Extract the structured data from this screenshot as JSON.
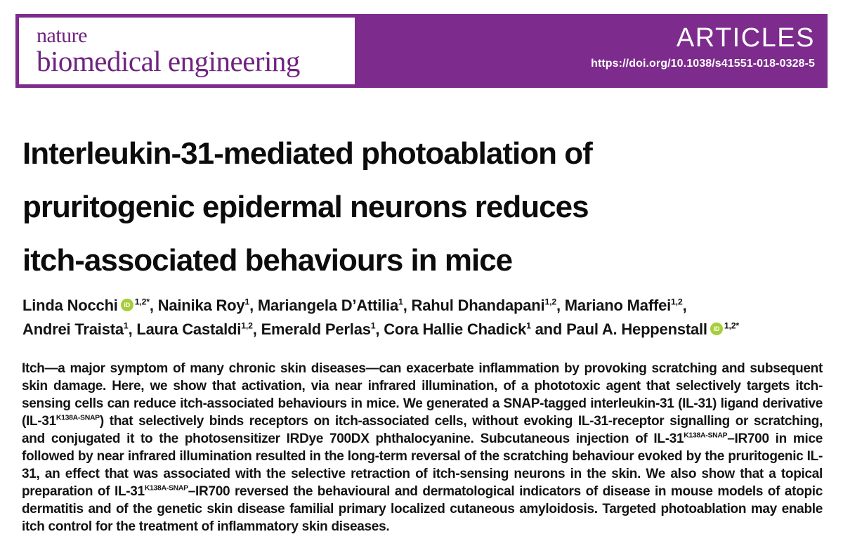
{
  "colors": {
    "purple": "#7d2b8c",
    "logo_purple": "#6f2480",
    "orcid_green": "#a6ce39"
  },
  "masthead": {
    "journal_name_line1": "nature",
    "journal_name_line2": "biomedical engineering",
    "article_type": "ARTICLES",
    "doi": "https://doi.org/10.1038/s41551-018-0328-5"
  },
  "article": {
    "title_lines": [
      "Interleukin-31-mediated photoablation of",
      "pruritogenic epidermal neurons reduces",
      "itch-associated behaviours in mice"
    ],
    "author_lines": [
      [
        {
          "t": "Linda Nocchi"
        },
        {
          "icon": "orcid"
        },
        {
          "sup": "1,2*"
        },
        {
          "t": ", Nainika Roy"
        },
        {
          "sup": "1"
        },
        {
          "t": ", Mariangela D’Attilia"
        },
        {
          "sup": "1"
        },
        {
          "t": ", Rahul Dhandapani"
        },
        {
          "sup": "1,2"
        },
        {
          "t": ", Mariano Maffei"
        },
        {
          "sup": "1,2"
        },
        {
          "t": ","
        }
      ],
      [
        {
          "t": "Andrei Traista"
        },
        {
          "sup": "1"
        },
        {
          "t": ", Laura Castaldi"
        },
        {
          "sup": "1,2"
        },
        {
          "t": ", Emerald Perlas"
        },
        {
          "sup": "1"
        },
        {
          "t": ", Cora Hallie Chadick"
        },
        {
          "sup": "1"
        },
        {
          "t": " and Paul A. Heppenstall"
        },
        {
          "icon": "orcid"
        },
        {
          "sup": "1,2*"
        }
      ]
    ],
    "abstract_runs": [
      {
        "t": "Itch—a major symptom of many chronic skin diseases—can exacerbate inflammation by provoking scratching and subsequent skin damage. Here, we show that activation, via near infrared illumination, of a phototoxic agent that selectively targets itch-sensing cells can reduce itch-associated behaviours in mice. We generated a SNAP-tagged interleukin-31 (IL-31) ligand derivative (IL-31"
      },
      {
        "sup": "K138A-SNAP"
      },
      {
        "t": ") that selectively binds receptors on itch-associated cells, without evoking IL-31-receptor signalling or scratching, and conjugated it to the photosensitizer IRDye 700DX phthalocyanine. Subcutaneous injection of IL-31"
      },
      {
        "sup": "K138A-SNAP"
      },
      {
        "t": "–IR700 in mice followed by near infrared illumination resulted in the long-term reversal of the scratching behaviour evoked by the pruritogenic IL-31, an effect that was associated with the selective retraction of itch-sensing neurons in the skin. We also show that a topical preparation of IL-31"
      },
      {
        "sup": "K138A-SNAP"
      },
      {
        "t": "–IR700 reversed the behavioural and dermatological indicators of disease in mouse models of atopic dermatitis and of the genetic skin disease familial primary localized cutaneous amyloidosis. Targeted photoablation may enable itch control for the treatment of inflammatory skin diseases."
      }
    ]
  }
}
